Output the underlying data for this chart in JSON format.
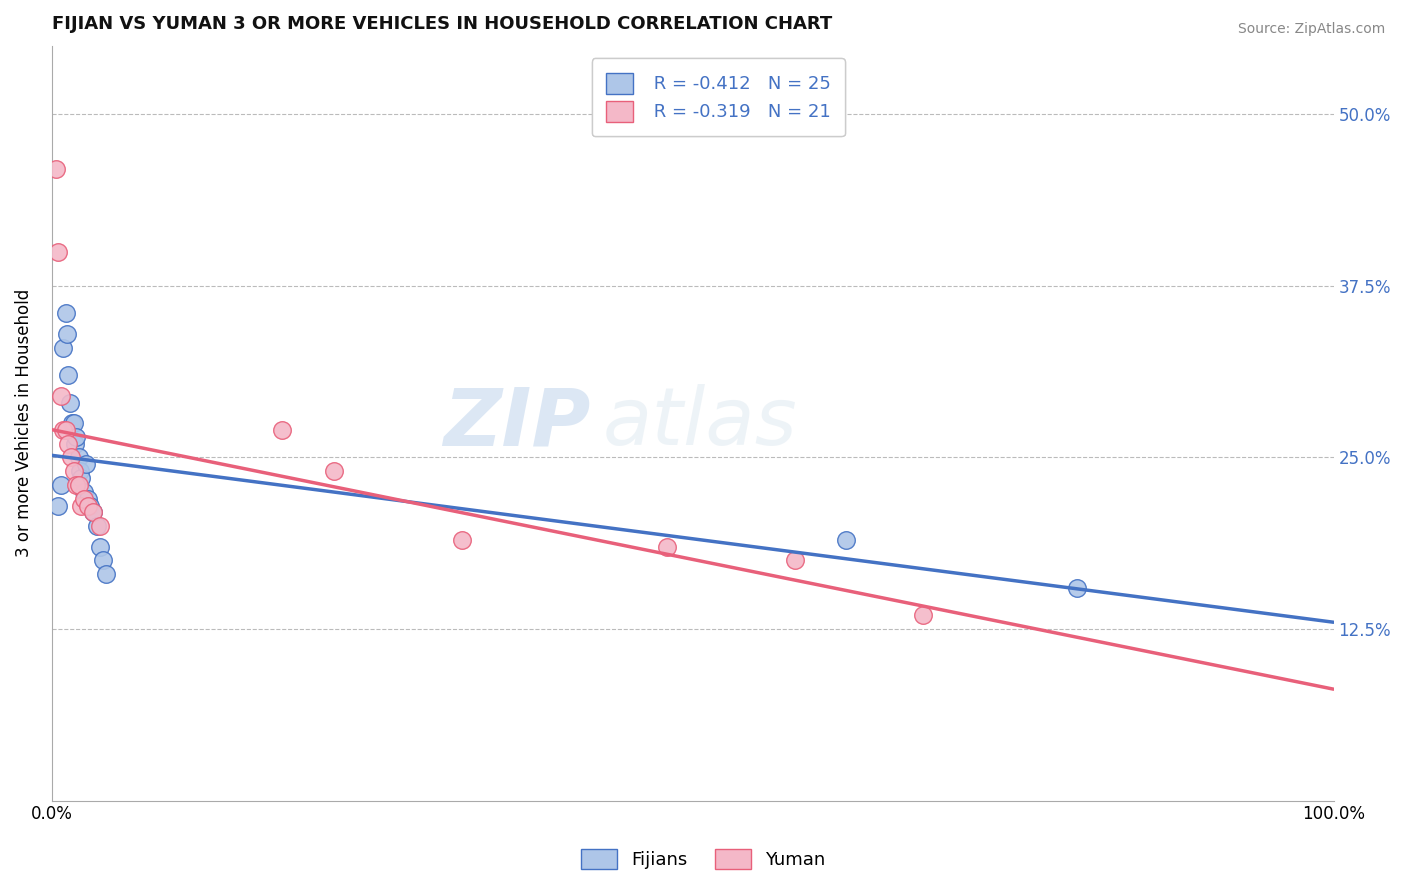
{
  "title": "FIJIAN VS YUMAN 3 OR MORE VEHICLES IN HOUSEHOLD CORRELATION CHART",
  "source_text": "Source: ZipAtlas.com",
  "ylabel": "3 or more Vehicles in Household",
  "xlim": [
    0.0,
    1.0
  ],
  "ylim": [
    0.0,
    0.55
  ],
  "xtick_vals": [
    0.0,
    1.0
  ],
  "xtick_labels": [
    "0.0%",
    "100.0%"
  ],
  "ytick_vals": [
    0.125,
    0.25,
    0.375,
    0.5
  ],
  "ytick_labels": [
    "12.5%",
    "25.0%",
    "37.5%",
    "50.0%"
  ],
  "fijian_R": -0.412,
  "fijian_N": 25,
  "yuman_R": -0.319,
  "yuman_N": 21,
  "legend_fijian_label": "Fijians",
  "legend_yuman_label": "Yuman",
  "fijian_color": "#aec6e8",
  "yuman_color": "#f4b8c8",
  "fijian_line_color": "#4472c4",
  "yuman_line_color": "#e8607a",
  "watermark_zip": "ZIP",
  "watermark_atlas": "atlas",
  "fijian_x": [
    0.005,
    0.007,
    0.009,
    0.011,
    0.012,
    0.013,
    0.014,
    0.016,
    0.017,
    0.018,
    0.019,
    0.021,
    0.022,
    0.023,
    0.025,
    0.027,
    0.028,
    0.03,
    0.032,
    0.035,
    0.038,
    0.04,
    0.042,
    0.62,
    0.8
  ],
  "fijian_y": [
    0.215,
    0.23,
    0.33,
    0.355,
    0.34,
    0.31,
    0.29,
    0.275,
    0.275,
    0.26,
    0.265,
    0.25,
    0.24,
    0.235,
    0.225,
    0.245,
    0.22,
    0.215,
    0.21,
    0.2,
    0.185,
    0.175,
    0.165,
    0.19,
    0.155
  ],
  "yuman_x": [
    0.003,
    0.005,
    0.007,
    0.009,
    0.011,
    0.013,
    0.015,
    0.017,
    0.019,
    0.021,
    0.023,
    0.025,
    0.028,
    0.032,
    0.038,
    0.18,
    0.22,
    0.48,
    0.58,
    0.68,
    0.32
  ],
  "yuman_y": [
    0.46,
    0.4,
    0.295,
    0.27,
    0.27,
    0.26,
    0.25,
    0.24,
    0.23,
    0.23,
    0.215,
    0.22,
    0.215,
    0.21,
    0.2,
    0.27,
    0.24,
    0.185,
    0.175,
    0.135,
    0.19
  ]
}
